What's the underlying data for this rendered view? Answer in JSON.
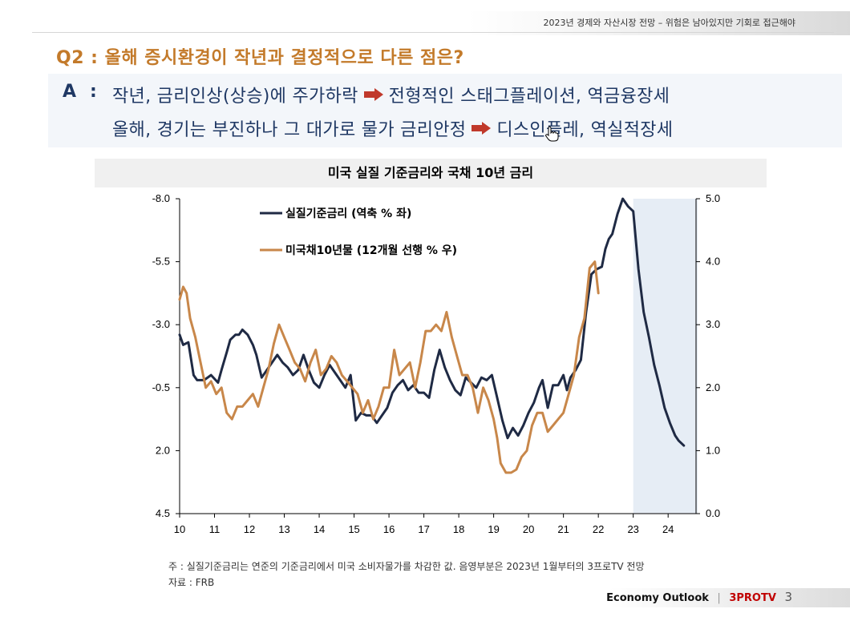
{
  "header": {
    "subtitle": "2023년 경제와 자산시장 전망 – 위험은 남아있지만 기회로 접근해야"
  },
  "question": {
    "text": "Q2 :  올해 증시환경이 작년과 결정적으로 다른 점은?"
  },
  "answer": {
    "label": "A",
    "colon": ":",
    "line1_a": "작년, 금리인상(상승)에 주가하락",
    "line1_b": "전형적인 스태그플레이션, 역금융장세",
    "line2_a": "올해, 경기는 부진하나 그 대가로 물가 금리안정",
    "line2_b": "디스인플레, 역실적장세",
    "arrow_color": "#c0392b"
  },
  "colors": {
    "navy": "#1f2a44",
    "orange": "#c8874a",
    "forecast_shade": "#e6edf5",
    "question": "#c37a2a",
    "answer": "#1f3864"
  },
  "chart_data": {
    "type": "line",
    "title": "미국 실질 기준금리와 국채 10년 금리",
    "x_ticks": [
      "10",
      "11",
      "12",
      "13",
      "14",
      "15",
      "16",
      "17",
      "18",
      "19",
      "20",
      "21",
      "22",
      "23",
      "24"
    ],
    "x_range": [
      10,
      24.8
    ],
    "forecast_start": 23.0,
    "left_axis": {
      "inverted": true,
      "min": -8.0,
      "max": 4.5,
      "ticks": [
        "-8.0",
        "-5.5",
        "-3.0",
        "-0.5",
        "2.0",
        "4.5"
      ]
    },
    "right_axis": {
      "min": 0.0,
      "max": 5.0,
      "ticks": [
        "5.0",
        "4.0",
        "3.0",
        "2.0",
        "1.0",
        "0.0"
      ]
    },
    "legend": [
      "실질기준금리 (역축 % 좌)",
      "미국채10년물 (12개월 선행 % 우)"
    ],
    "series": [
      {
        "name": "실질기준금리 (역축 % 좌)",
        "axis": "left",
        "color": "#1f2a44",
        "x": [
          10.0,
          10.1,
          10.25,
          10.4,
          10.5,
          10.7,
          10.9,
          11.1,
          11.2,
          11.35,
          11.45,
          11.6,
          11.7,
          11.8,
          11.95,
          12.1,
          12.2,
          12.35,
          12.5,
          12.65,
          12.8,
          12.95,
          13.1,
          13.25,
          13.4,
          13.55,
          13.7,
          13.85,
          14.0,
          14.15,
          14.3,
          14.45,
          14.6,
          14.75,
          14.9,
          15.05,
          15.2,
          15.35,
          15.5,
          15.65,
          15.8,
          15.95,
          16.1,
          16.25,
          16.4,
          16.55,
          16.7,
          16.85,
          17.0,
          17.15,
          17.3,
          17.45,
          17.6,
          17.75,
          17.9,
          18.05,
          18.2,
          18.35,
          18.5,
          18.65,
          18.8,
          18.95,
          19.1,
          19.25,
          19.4,
          19.55,
          19.7,
          19.85,
          20.0,
          20.15,
          20.3,
          20.4,
          20.55,
          20.7,
          20.85,
          21.0,
          21.1,
          21.2,
          21.35,
          21.5,
          21.65,
          21.8,
          21.95,
          22.1,
          22.2,
          22.3,
          22.4,
          22.55,
          22.7,
          22.85,
          23.0,
          23.15,
          23.3,
          23.45,
          23.6,
          23.75,
          23.9,
          24.05,
          24.2,
          24.3,
          24.45
        ],
        "values": [
          -2.6,
          -2.2,
          -2.3,
          -1.0,
          -0.8,
          -0.8,
          -1.0,
          -0.7,
          -1.2,
          -1.9,
          -2.4,
          -2.6,
          -2.6,
          -2.8,
          -2.6,
          -2.2,
          -1.8,
          -0.9,
          -1.2,
          -1.5,
          -1.8,
          -1.5,
          -1.3,
          -1.0,
          -1.2,
          -1.8,
          -1.2,
          -0.7,
          -0.5,
          -1.0,
          -1.4,
          -1.1,
          -0.8,
          -0.5,
          -1.0,
          0.8,
          0.5,
          0.6,
          0.6,
          0.9,
          0.6,
          0.3,
          -0.3,
          -0.6,
          -0.8,
          -0.4,
          -0.6,
          -0.3,
          -0.3,
          -0.1,
          -1.2,
          -2.0,
          -1.3,
          -0.8,
          -0.4,
          -0.2,
          -0.9,
          -0.7,
          -0.5,
          -0.9,
          -0.8,
          -1.0,
          -0.1,
          0.8,
          1.5,
          1.1,
          1.4,
          1.0,
          0.5,
          0.1,
          -0.5,
          -0.8,
          0.3,
          -0.6,
          -0.6,
          -1.0,
          -0.4,
          -0.9,
          -1.2,
          -1.6,
          -3.5,
          -5.0,
          -5.2,
          -5.3,
          -6.0,
          -6.4,
          -6.6,
          -7.4,
          -8.0,
          -7.7,
          -7.5,
          -5.2,
          -3.5,
          -2.5,
          -1.4,
          -0.6,
          0.3,
          0.9,
          1.4,
          1.6,
          1.8
        ]
      },
      {
        "name": "미국채10년물 (12개월 선행 % 우)",
        "axis": "right",
        "color": "#c8874a",
        "x": [
          10.0,
          10.1,
          10.2,
          10.3,
          10.45,
          10.6,
          10.75,
          10.9,
          11.05,
          11.2,
          11.35,
          11.5,
          11.65,
          11.8,
          11.95,
          12.1,
          12.25,
          12.4,
          12.55,
          12.7,
          12.85,
          13.0,
          13.15,
          13.3,
          13.45,
          13.6,
          13.75,
          13.9,
          14.05,
          14.2,
          14.35,
          14.5,
          14.65,
          14.8,
          14.95,
          15.1,
          15.25,
          15.4,
          15.55,
          15.7,
          15.85,
          16.0,
          16.15,
          16.3,
          16.45,
          16.6,
          16.75,
          16.9,
          17.05,
          17.2,
          17.35,
          17.5,
          17.65,
          17.8,
          17.95,
          18.1,
          18.25,
          18.4,
          18.55,
          18.7,
          18.85,
          19.0,
          19.1,
          19.2,
          19.35,
          19.5,
          19.65,
          19.8,
          19.95,
          20.1,
          20.25,
          20.4,
          20.55,
          20.7,
          20.85,
          21.0,
          21.15,
          21.3,
          21.45,
          21.6,
          21.75,
          21.9,
          22.0
        ],
        "values": [
          3.4,
          3.6,
          3.5,
          3.1,
          2.8,
          2.4,
          2.0,
          2.1,
          1.9,
          2.0,
          1.6,
          1.5,
          1.7,
          1.7,
          1.8,
          1.9,
          1.7,
          2.0,
          2.3,
          2.7,
          3.0,
          2.8,
          2.6,
          2.4,
          2.3,
          2.1,
          2.4,
          2.6,
          2.2,
          2.3,
          2.5,
          2.4,
          2.2,
          2.1,
          2.0,
          1.9,
          1.6,
          1.8,
          1.5,
          1.7,
          2.0,
          2.0,
          2.6,
          2.2,
          2.3,
          2.4,
          2.0,
          2.4,
          2.9,
          2.9,
          3.0,
          2.9,
          3.2,
          2.8,
          2.5,
          2.2,
          2.2,
          2.0,
          1.6,
          2.0,
          1.8,
          1.5,
          1.2,
          0.8,
          0.65,
          0.65,
          0.7,
          0.9,
          1.0,
          1.4,
          1.6,
          1.6,
          1.3,
          1.4,
          1.5,
          1.6,
          1.9,
          2.2,
          2.8,
          3.1,
          3.9,
          4.0,
          3.5
        ]
      }
    ]
  },
  "notes": {
    "line1": "주 : 실질기준금리는 연준의 기준금리에서 미국 소비자물가를 차감한 값. 음영부분은 2023년 1월부터의 3프로TV 전망",
    "line2": "자료 :  FRB"
  },
  "footer": {
    "label": "Economy Outlook",
    "separator": "|",
    "brand": "3PROTV",
    "page": "3"
  }
}
